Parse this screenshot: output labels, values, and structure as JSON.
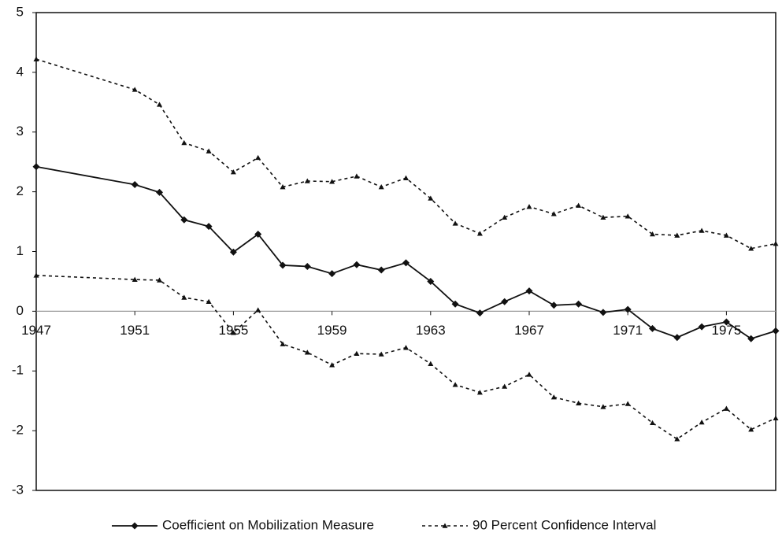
{
  "chart_data": {
    "type": "line",
    "x": [
      1947,
      1951,
      1952,
      1953,
      1954,
      1955,
      1956,
      1957,
      1958,
      1959,
      1960,
      1961,
      1962,
      1963,
      1964,
      1965,
      1966,
      1967,
      1968,
      1969,
      1970,
      1971,
      1972,
      1973,
      1974,
      1975,
      1976,
      1977
    ],
    "series": [
      {
        "name": "Coefficient on Mobilization Measure",
        "color": "#111111",
        "values": [
          2.42,
          2.12,
          1.99,
          1.53,
          1.42,
          0.99,
          1.29,
          0.77,
          0.75,
          0.63,
          0.78,
          0.69,
          0.81,
          0.5,
          0.12,
          -0.03,
          0.16,
          0.34,
          0.1,
          0.12,
          -0.02,
          0.03,
          -0.29,
          -0.44,
          -0.26,
          -0.18,
          -0.46,
          -0.33
        ]
      }
    ],
    "interval": {
      "name": "90 Percent Confidence Interval",
      "color": "#111111",
      "upper": [
        4.22,
        3.71,
        3.46,
        2.82,
        2.68,
        2.33,
        2.57,
        2.08,
        2.18,
        2.17,
        2.26,
        2.08,
        2.23,
        1.89,
        1.47,
        1.3,
        1.57,
        1.75,
        1.63,
        1.77,
        1.57,
        1.59,
        1.29,
        1.27,
        1.35,
        1.27,
        1.05,
        1.13
      ],
      "lower": [
        0.6,
        0.53,
        0.52,
        0.23,
        0.16,
        -0.36,
        0.02,
        -0.55,
        -0.69,
        -0.9,
        -0.71,
        -0.72,
        -0.61,
        -0.88,
        -1.23,
        -1.36,
        -1.26,
        -1.06,
        -1.44,
        -1.54,
        -1.6,
        -1.55,
        -1.87,
        -2.14,
        -1.86,
        -1.63,
        -1.98,
        -1.79
      ]
    },
    "xlim": [
      1947,
      1977
    ],
    "xticks": [
      1947,
      1951,
      1955,
      1959,
      1963,
      1967,
      1971,
      1975
    ],
    "ylim": [
      -3,
      5
    ],
    "yticks": [
      -3,
      -2,
      -1,
      0,
      1,
      2,
      3,
      4,
      5
    ],
    "legend": "bottom"
  }
}
